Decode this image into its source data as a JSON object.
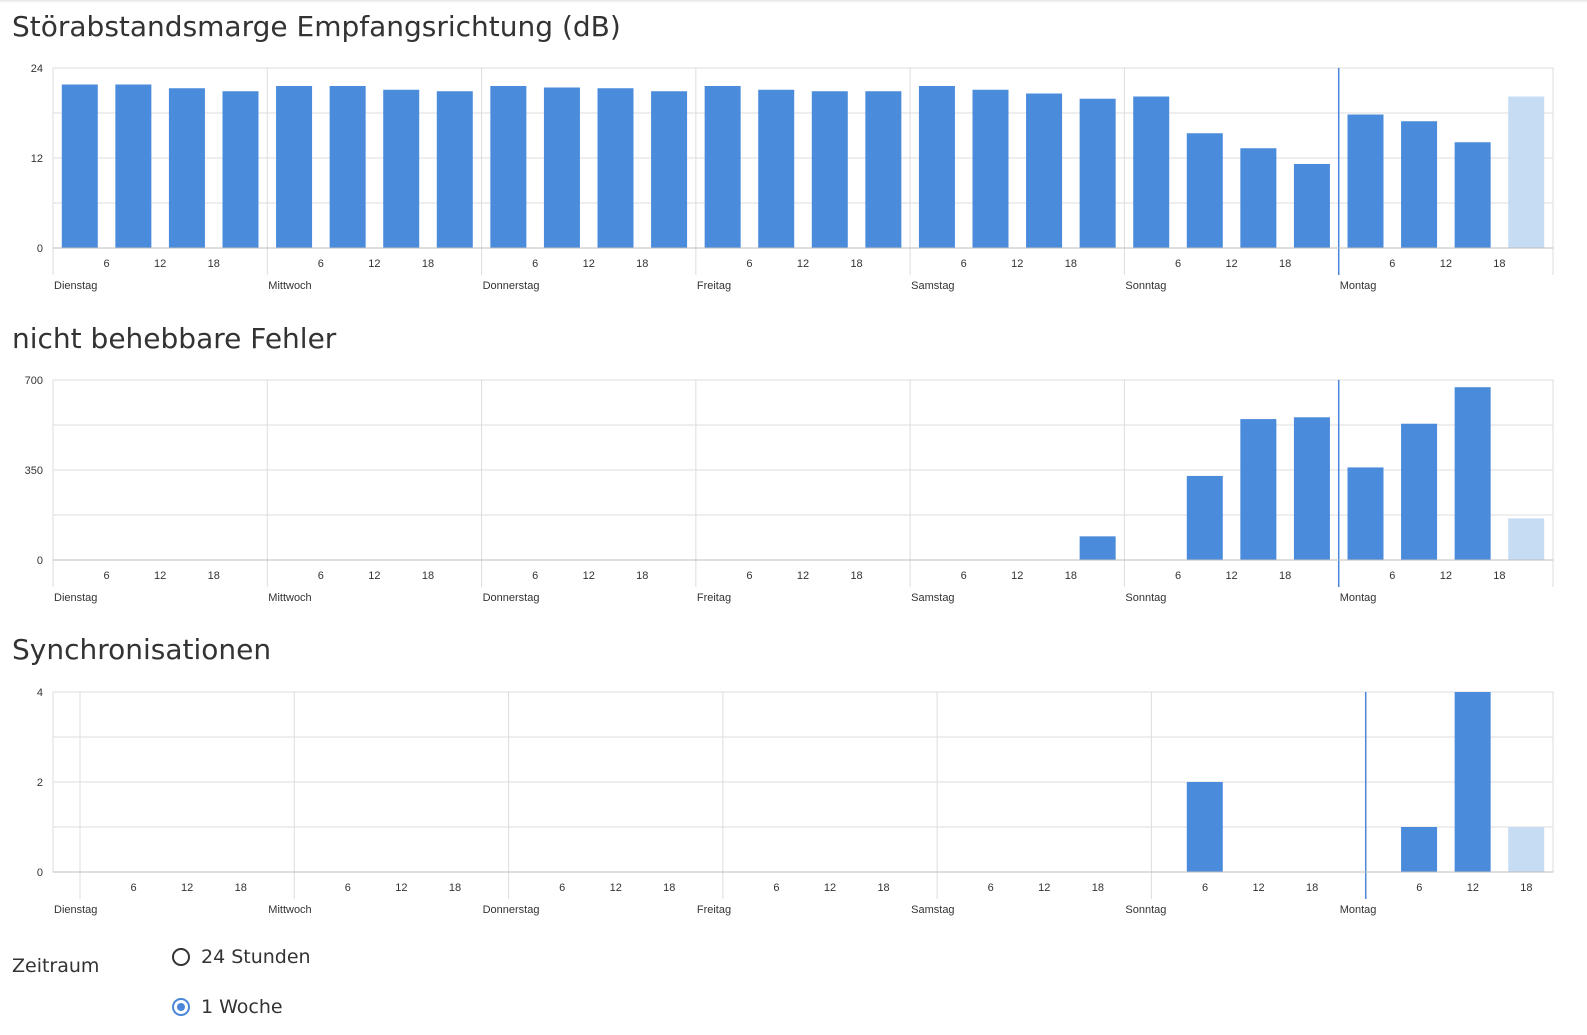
{
  "chart_data": [
    {
      "type": "bar",
      "title": "Störabstandsmarge Empfangsrichtung (dB)",
      "ylim": [
        0,
        24
      ],
      "yticks": [
        "24",
        "12",
        "0"
      ],
      "hour_ticks": [
        "6",
        "12",
        "18"
      ],
      "days": [
        "Dienstag",
        "Mittwoch",
        "Donnerstag",
        "Freitag",
        "Samstag",
        "Sonntag",
        "Montag"
      ],
      "values": [
        21.8,
        21.8,
        21.3,
        20.9,
        21.6,
        21.6,
        21.1,
        20.9,
        21.6,
        21.4,
        21.3,
        20.9,
        21.6,
        21.1,
        20.9,
        20.9,
        21.6,
        21.1,
        20.6,
        19.9,
        20.2,
        15.3,
        13.3,
        11.2,
        17.8,
        16.9,
        14.1,
        20.2
      ],
      "current_index": 27,
      "grid": true
    },
    {
      "type": "bar",
      "title": "nicht behebbare Fehler",
      "ylim": [
        0,
        700
      ],
      "yticks": [
        "700",
        "350",
        "0"
      ],
      "hour_ticks": [
        "6",
        "12",
        "18"
      ],
      "days": [
        "Dienstag",
        "Mittwoch",
        "Donnerstag",
        "Freitag",
        "Samstag",
        "Sonntag",
        "Montag"
      ],
      "values": [
        0,
        0,
        0,
        0,
        0,
        0,
        0,
        0,
        0,
        0,
        0,
        0,
        0,
        0,
        0,
        0,
        0,
        0,
        0,
        92,
        2,
        327,
        548,
        555,
        360,
        530,
        672,
        162
      ],
      "current_index": 27,
      "grid": true
    },
    {
      "type": "bar",
      "title": "Synchronisationen",
      "ylim": [
        0,
        4
      ],
      "yticks": [
        "4",
        "2",
        "0"
      ],
      "hour_ticks": [
        "6",
        "12",
        "18"
      ],
      "days": [
        "Dienstag",
        "Mittwoch",
        "Donnerstag",
        "Freitag",
        "Samstag",
        "Sonntag",
        "Montag"
      ],
      "values": [
        0,
        0,
        0,
        0,
        0,
        0,
        0,
        0,
        0,
        0,
        0,
        0,
        0,
        0,
        0,
        0,
        0,
        0,
        0,
        0,
        0,
        2,
        0,
        0,
        0,
        1,
        4,
        1
      ],
      "current_index": 27,
      "grid": true
    }
  ],
  "colors": {
    "bar": "#4a8bdc",
    "bar_current": "#c6dcf3",
    "grid": "#dddddd",
    "now_marker": "#4a86d9"
  },
  "period": {
    "label": "Zeitraum",
    "options": [
      {
        "label": "24 Stunden",
        "checked": false
      },
      {
        "label": "1 Woche",
        "checked": true
      }
    ]
  }
}
